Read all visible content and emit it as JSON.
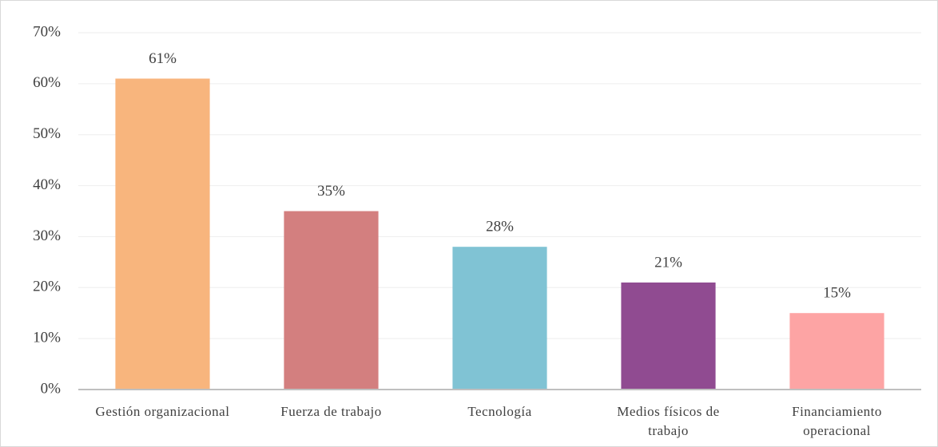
{
  "chart_data": {
    "type": "bar",
    "categories": [
      "Gestión organizacional",
      "Fuerza de trabajo",
      "Tecnología",
      "Medios físicos de trabajo",
      "Financiamiento operacional"
    ],
    "values": [
      61,
      35,
      28,
      21,
      15
    ],
    "value_labels": [
      "61%",
      "35%",
      "28%",
      "21%",
      "15%"
    ],
    "colors": [
      "#f8b57d",
      "#d37f7f",
      "#80c3d4",
      "#904b91",
      "#fda4a4"
    ],
    "ylim": [
      0,
      70
    ],
    "yticks": [
      {
        "value": 0,
        "label": "0%"
      },
      {
        "value": 10,
        "label": "10%"
      },
      {
        "value": 20,
        "label": "20%"
      },
      {
        "value": 30,
        "label": "30%"
      },
      {
        "value": 40,
        "label": "40%"
      },
      {
        "value": 50,
        "label": "50%"
      },
      {
        "value": 60,
        "label": "60%"
      },
      {
        "value": 70,
        "label": "70%"
      }
    ],
    "grid": true
  }
}
